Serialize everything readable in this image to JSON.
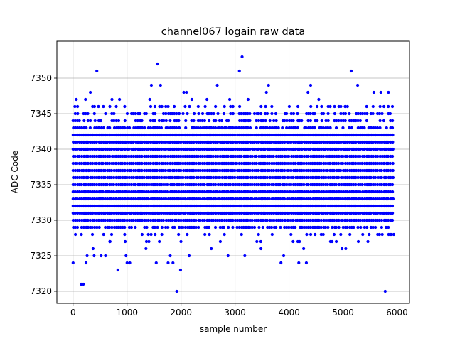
{
  "chart_data": {
    "type": "scatter",
    "title": "channel067 logain raw data",
    "xlabel": "sample number",
    "ylabel": "ADC Code",
    "xlim": [
      -300,
      6230
    ],
    "ylim": [
      7318.3,
      7355.2
    ],
    "xticks": [
      0,
      1000,
      2000,
      3000,
      4000,
      5000,
      6000
    ],
    "yticks": [
      7320,
      7325,
      7330,
      7335,
      7340,
      7345,
      7350
    ],
    "grid": true,
    "marker_color": "#0000ff",
    "x_range": [
      0,
      5940
    ],
    "band": {
      "low": 7329,
      "high": 7343,
      "levels": [
        7329,
        7330,
        7331,
        7332,
        7333,
        7334,
        7335,
        7336,
        7337,
        7338,
        7339,
        7340,
        7341,
        7342,
        7343
      ]
    },
    "outliers": [
      {
        "x": 0,
        "y": 7324
      },
      {
        "x": 60,
        "y": 7347
      },
      {
        "x": 150,
        "y": 7321
      },
      {
        "x": 190,
        "y": 7321
      },
      {
        "x": 230,
        "y": 7347
      },
      {
        "x": 240,
        "y": 7324
      },
      {
        "x": 260,
        "y": 7325
      },
      {
        "x": 320,
        "y": 7348
      },
      {
        "x": 370,
        "y": 7326
      },
      {
        "x": 390,
        "y": 7325
      },
      {
        "x": 440,
        "y": 7351
      },
      {
        "x": 470,
        "y": 7346
      },
      {
        "x": 520,
        "y": 7325
      },
      {
        "x": 600,
        "y": 7325
      },
      {
        "x": 680,
        "y": 7327
      },
      {
        "x": 720,
        "y": 7347
      },
      {
        "x": 830,
        "y": 7323
      },
      {
        "x": 860,
        "y": 7347
      },
      {
        "x": 980,
        "y": 7325
      },
      {
        "x": 1000,
        "y": 7324
      },
      {
        "x": 1050,
        "y": 7324
      },
      {
        "x": 1350,
        "y": 7326
      },
      {
        "x": 1420,
        "y": 7347
      },
      {
        "x": 1450,
        "y": 7349
      },
      {
        "x": 1540,
        "y": 7324
      },
      {
        "x": 1560,
        "y": 7352
      },
      {
        "x": 1620,
        "y": 7349
      },
      {
        "x": 1760,
        "y": 7324
      },
      {
        "x": 1800,
        "y": 7325
      },
      {
        "x": 1850,
        "y": 7324
      },
      {
        "x": 1920,
        "y": 7320
      },
      {
        "x": 1990,
        "y": 7323
      },
      {
        "x": 2050,
        "y": 7348
      },
      {
        "x": 2100,
        "y": 7348
      },
      {
        "x": 2150,
        "y": 7325
      },
      {
        "x": 2200,
        "y": 7347
      },
      {
        "x": 2480,
        "y": 7347
      },
      {
        "x": 2560,
        "y": 7326
      },
      {
        "x": 2670,
        "y": 7349
      },
      {
        "x": 2870,
        "y": 7325
      },
      {
        "x": 2900,
        "y": 7347
      },
      {
        "x": 3080,
        "y": 7351
      },
      {
        "x": 3130,
        "y": 7353
      },
      {
        "x": 3180,
        "y": 7325
      },
      {
        "x": 3240,
        "y": 7347
      },
      {
        "x": 3480,
        "y": 7326
      },
      {
        "x": 3580,
        "y": 7348
      },
      {
        "x": 3620,
        "y": 7349
      },
      {
        "x": 3850,
        "y": 7324
      },
      {
        "x": 3900,
        "y": 7325
      },
      {
        "x": 4180,
        "y": 7324
      },
      {
        "x": 4270,
        "y": 7326
      },
      {
        "x": 4320,
        "y": 7324
      },
      {
        "x": 4350,
        "y": 7348
      },
      {
        "x": 4400,
        "y": 7349
      },
      {
        "x": 4550,
        "y": 7347
      },
      {
        "x": 4980,
        "y": 7326
      },
      {
        "x": 5050,
        "y": 7326
      },
      {
        "x": 5150,
        "y": 7351
      },
      {
        "x": 5270,
        "y": 7349
      },
      {
        "x": 5460,
        "y": 7327
      },
      {
        "x": 5570,
        "y": 7348
      },
      {
        "x": 5700,
        "y": 7348
      },
      {
        "x": 5780,
        "y": 7320
      },
      {
        "x": 5840,
        "y": 7348
      },
      {
        "x": 5900,
        "y": 7328
      },
      {
        "x": 5940,
        "y": 7328
      }
    ],
    "edge_sparse_levels": [
      7327,
      7328,
      7344,
      7345,
      7346
    ]
  }
}
